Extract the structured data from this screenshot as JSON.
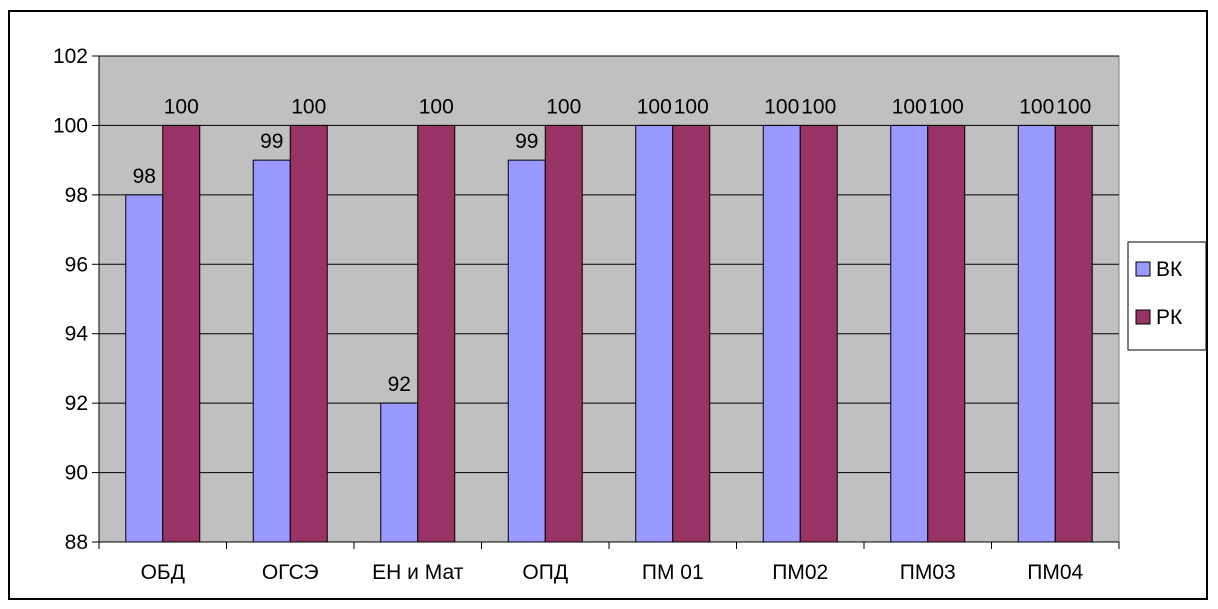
{
  "chart_data": {
    "type": "bar",
    "title": "",
    "xlabel": "",
    "ylabel": "",
    "categories": [
      "ОБД",
      "ОГСЭ",
      "ЕН и Мат",
      "ОПД",
      "ПМ 01",
      "ПМ02",
      "ПМ03",
      "ПМ04"
    ],
    "series": [
      {
        "name": "ВК",
        "values": [
          98,
          99,
          92,
          99,
          100,
          100,
          100,
          100
        ],
        "color": "#9999ff"
      },
      {
        "name": "РК",
        "values": [
          100,
          100,
          100,
          100,
          100,
          100,
          100,
          100
        ],
        "color": "#993366"
      }
    ],
    "ylim": [
      88,
      102
    ],
    "yticks": [
      88,
      90,
      92,
      94,
      96,
      98,
      100,
      102
    ],
    "grid": true,
    "plot_background": "#c0c0c0",
    "legend_position": "right",
    "data_labels": true
  }
}
